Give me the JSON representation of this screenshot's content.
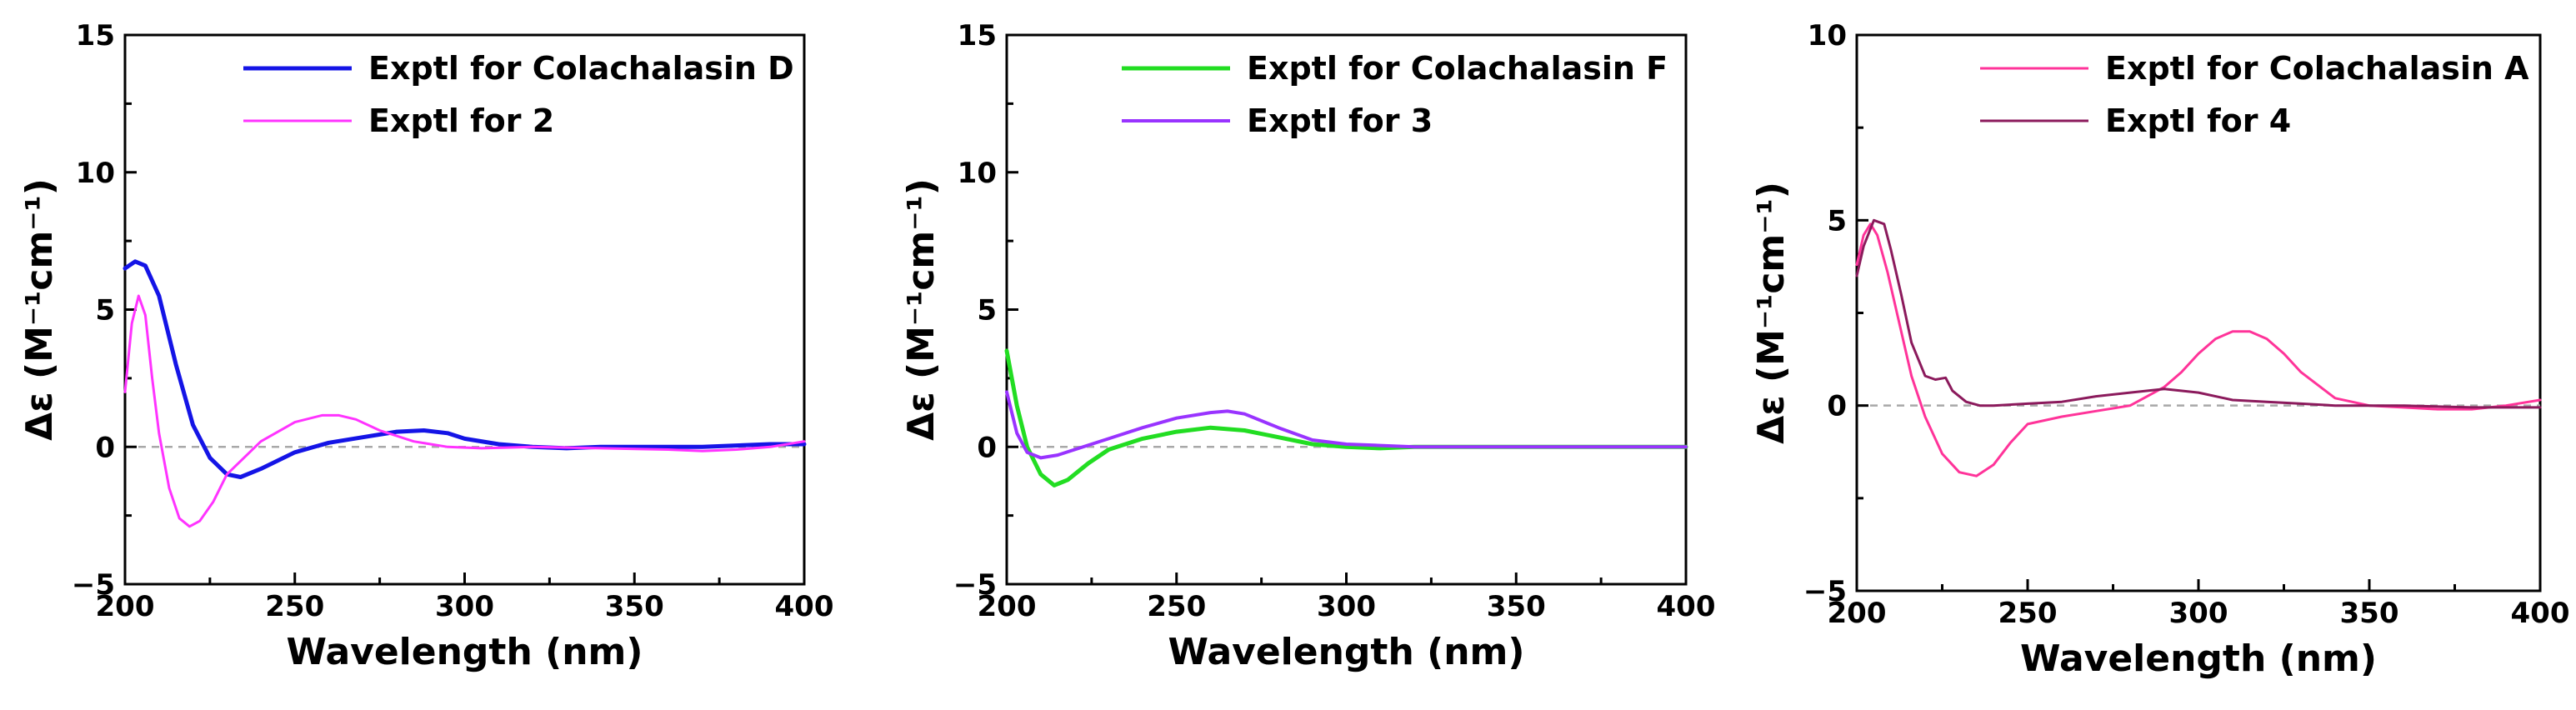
{
  "chart_data": [
    {
      "type": "line",
      "title": "",
      "xlabel": "Wavelength (nm)",
      "ylabel": "Δε (M⁻¹cm⁻¹)",
      "xlim": [
        200,
        400
      ],
      "ylim": [
        -5,
        15
      ],
      "xticks": [
        200,
        250,
        300,
        350,
        400
      ],
      "yticks": [
        -5,
        0,
        5,
        10,
        15
      ],
      "ytick_labels": [
        "−5",
        "0",
        "5",
        "10",
        "15"
      ],
      "zero_line": true,
      "legend_position": "top-right",
      "series": [
        {
          "name": "Exptl for Colachalasin D",
          "color": "#1414e6",
          "x": [
            200,
            203,
            206,
            210,
            215,
            220,
            225,
            230,
            234,
            240,
            250,
            260,
            270,
            280,
            288,
            295,
            300,
            310,
            320,
            330,
            340,
            350,
            360,
            370,
            380,
            390,
            400
          ],
          "y": [
            6.5,
            6.75,
            6.6,
            5.5,
            3.0,
            0.8,
            -0.4,
            -1.0,
            -1.1,
            -0.8,
            -0.2,
            0.15,
            0.35,
            0.55,
            0.6,
            0.5,
            0.3,
            0.1,
            0.0,
            -0.05,
            0.0,
            0.0,
            0.0,
            0.0,
            0.05,
            0.1,
            0.1
          ]
        },
        {
          "name": "Exptl for 2",
          "color": "#ff33ff",
          "x": [
            200,
            202,
            204,
            206,
            208,
            210,
            213,
            216,
            219,
            222,
            226,
            230,
            240,
            250,
            258,
            263,
            268,
            275,
            285,
            295,
            305,
            320,
            340,
            360,
            370,
            380,
            390,
            400
          ],
          "y": [
            2.0,
            4.5,
            5.5,
            4.8,
            2.5,
            0.5,
            -1.5,
            -2.6,
            -2.9,
            -2.7,
            -2.0,
            -1.0,
            0.2,
            0.9,
            1.15,
            1.15,
            1.0,
            0.6,
            0.2,
            0.0,
            -0.05,
            0.0,
            -0.05,
            -0.1,
            -0.15,
            -0.1,
            0.0,
            0.2
          ]
        }
      ]
    },
    {
      "type": "line",
      "title": "",
      "xlabel": "Wavelength (nm)",
      "ylabel": "Δε (M⁻¹cm⁻¹)",
      "xlim": [
        200,
        400
      ],
      "ylim": [
        -5,
        15
      ],
      "xticks": [
        200,
        250,
        300,
        350,
        400
      ],
      "yticks": [
        -5,
        0,
        5,
        10,
        15
      ],
      "ytick_labels": [
        "−5",
        "0",
        "5",
        "10",
        "15"
      ],
      "zero_line": true,
      "legend_position": "top-right",
      "series": [
        {
          "name": "Exptl for Colachalasin F",
          "color": "#22dd22",
          "x": [
            200,
            203,
            206,
            210,
            214,
            218,
            224,
            230,
            240,
            250,
            260,
            270,
            280,
            290,
            300,
            310,
            320,
            340,
            360,
            380,
            400
          ],
          "y": [
            3.5,
            1.5,
            0.0,
            -1.0,
            -1.4,
            -1.2,
            -0.6,
            -0.1,
            0.3,
            0.55,
            0.7,
            0.6,
            0.35,
            0.1,
            0.0,
            -0.05,
            0.0,
            0.0,
            0.0,
            0.0,
            0.0
          ]
        },
        {
          "name": "Exptl for 3",
          "color": "#9933ff",
          "x": [
            200,
            203,
            206,
            210,
            215,
            220,
            230,
            240,
            250,
            260,
            265,
            270,
            280,
            290,
            300,
            310,
            320,
            340,
            360,
            380,
            400
          ],
          "y": [
            2.0,
            0.5,
            -0.2,
            -0.4,
            -0.3,
            -0.1,
            0.3,
            0.7,
            1.05,
            1.25,
            1.3,
            1.2,
            0.7,
            0.25,
            0.1,
            0.05,
            0.0,
            0.0,
            0.0,
            0.0,
            0.0
          ]
        }
      ]
    },
    {
      "type": "line",
      "title": "",
      "xlabel": "Wavelength (nm)",
      "ylabel": "Δε (M⁻¹cm⁻¹)",
      "xlim": [
        200,
        400
      ],
      "ylim": [
        -5,
        10
      ],
      "xticks": [
        200,
        250,
        300,
        350,
        400
      ],
      "yticks": [
        -5,
        0,
        5,
        10
      ],
      "ytick_labels": [
        "−5",
        "0",
        "5",
        "10"
      ],
      "zero_line": true,
      "legend_position": "top-right",
      "series": [
        {
          "name": "Exptl for Colachalasin A",
          "color": "#ff3399",
          "x": [
            200,
            202,
            204,
            206,
            209,
            212,
            216,
            220,
            225,
            230,
            235,
            240,
            245,
            250,
            260,
            270,
            280,
            290,
            295,
            300,
            305,
            310,
            315,
            320,
            325,
            330,
            340,
            350,
            360,
            370,
            380,
            390,
            400
          ],
          "y": [
            3.8,
            4.6,
            4.9,
            4.6,
            3.6,
            2.4,
            0.8,
            -0.3,
            -1.3,
            -1.8,
            -1.9,
            -1.6,
            -1.0,
            -0.5,
            -0.3,
            -0.15,
            0.0,
            0.5,
            0.9,
            1.4,
            1.8,
            2.0,
            2.0,
            1.8,
            1.4,
            0.9,
            0.2,
            0.0,
            -0.05,
            -0.1,
            -0.1,
            0.0,
            0.15
          ]
        },
        {
          "name": "Exptl for 4",
          "color": "#8b1a5c",
          "x": [
            200,
            202,
            205,
            208,
            210,
            213,
            216,
            220,
            223,
            226,
            228,
            232,
            236,
            240,
            250,
            260,
            270,
            280,
            290,
            300,
            310,
            320,
            330,
            340,
            350,
            360,
            380,
            400
          ],
          "y": [
            3.5,
            4.3,
            5.0,
            4.9,
            4.2,
            3.0,
            1.7,
            0.8,
            0.7,
            0.75,
            0.4,
            0.1,
            0.0,
            0.0,
            0.05,
            0.1,
            0.25,
            0.35,
            0.45,
            0.35,
            0.15,
            0.1,
            0.05,
            0.0,
            0.0,
            0.0,
            -0.05,
            -0.05
          ]
        }
      ]
    }
  ]
}
